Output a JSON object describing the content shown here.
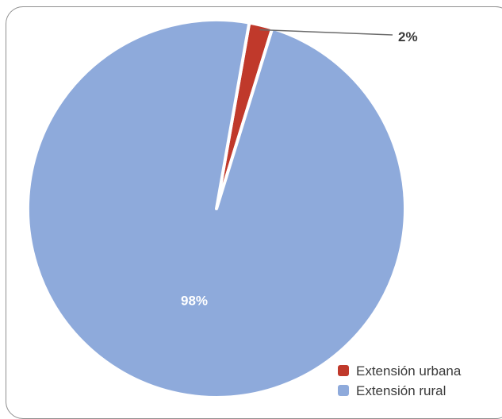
{
  "chart_data": {
    "type": "pie",
    "categories": [
      "Extensión urbana",
      "Extensión rural"
    ],
    "values": [
      2,
      98
    ],
    "data_labels": [
      "2%",
      "98%"
    ],
    "colors": [
      "#c0392b",
      "#8eaadb"
    ],
    "legend_position": "bottom-right",
    "start_angle_deg": 10
  }
}
